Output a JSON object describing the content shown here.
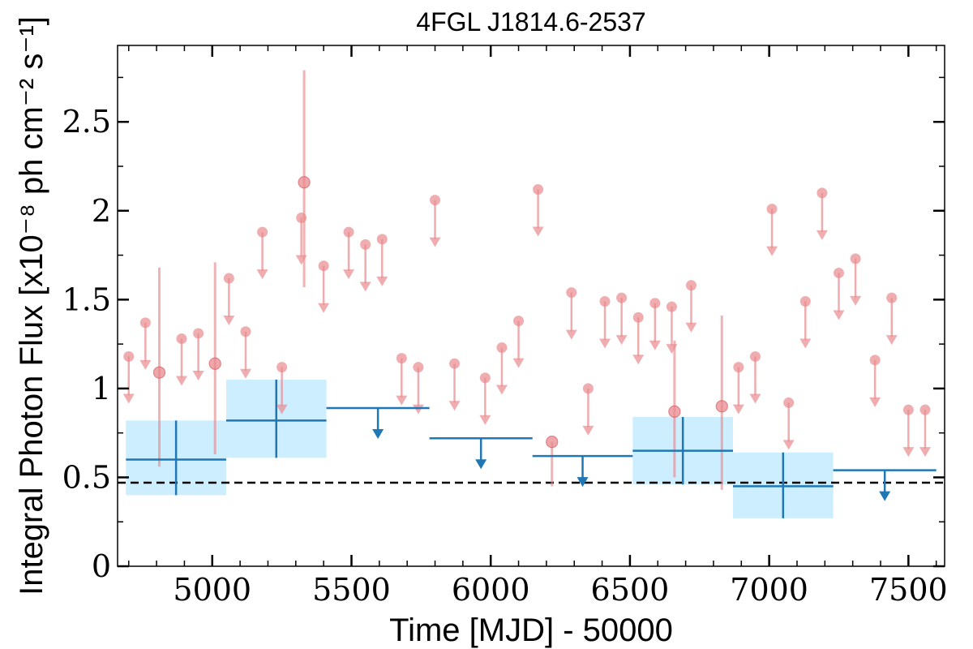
{
  "chart_data": {
    "type": "scatter",
    "title": "4FGL J1814.6-2537",
    "xlabel": "Time [MJD] - 50000",
    "ylabel": "Integral Photon Flux [x10⁻⁸ ph cm⁻² s⁻¹]",
    "xlim": [
      4660,
      7630
    ],
    "ylim": [
      0,
      2.93
    ],
    "x_ticks": [
      5000,
      5500,
      6000,
      6500,
      7000,
      7500
    ],
    "x_tick_labels": [
      "5000",
      "5500",
      "6000",
      "6500",
      "7000",
      "7500"
    ],
    "y_ticks": [
      0,
      0.5,
      1,
      1.5,
      2,
      2.5
    ],
    "y_tick_labels": [
      "0",
      "0.5",
      "1",
      "1.5",
      "2",
      "2.5"
    ],
    "grid": false,
    "reference_line": {
      "y": 0.47,
      "style": "dashed",
      "color": "#000000"
    },
    "colors": {
      "short_bins": "#e98a8e",
      "long_bins": "#1f77b4",
      "long_band": "#cdeeff"
    },
    "short_bin_upper_limits": {
      "x": [
        4700,
        4760,
        4890,
        4950,
        5060,
        5120,
        5180,
        5250,
        5320,
        5400,
        5490,
        5550,
        5610,
        5680,
        5740,
        5800,
        5870,
        5980,
        6040,
        6100,
        6170,
        6290,
        6350,
        6410,
        6470,
        6530,
        6590,
        6650,
        6720,
        6890,
        6950,
        7010,
        7070,
        7130,
        7190,
        7250,
        7310,
        7380,
        7440,
        7500,
        7560
      ],
      "y": [
        1.18,
        1.37,
        1.28,
        1.31,
        1.62,
        1.32,
        1.88,
        1.12,
        1.96,
        1.69,
        1.88,
        1.81,
        1.84,
        1.17,
        1.12,
        2.06,
        1.14,
        1.06,
        1.23,
        1.38,
        2.12,
        1.54,
        1.0,
        1.49,
        1.51,
        1.4,
        1.48,
        1.46,
        1.58,
        1.12,
        1.18,
        2.01,
        0.92,
        1.49,
        2.1,
        1.65,
        1.73,
        1.16,
        1.51,
        0.88,
        0.88
      ]
    },
    "short_bin_detections": {
      "x": [
        4810,
        5010,
        5330,
        6220,
        6660,
        6830
      ],
      "y": [
        1.09,
        1.14,
        2.16,
        0.7,
        0.87,
        0.9
      ],
      "err_low": [
        0.56,
        0.63,
        1.57,
        0.45,
        0.5,
        0.43
      ],
      "err_high": [
        1.68,
        1.71,
        2.79,
        0.7,
        1.27,
        1.41
      ]
    },
    "long_bin_detections": {
      "x_start": [
        4690,
        5050,
        6510,
        6870
      ],
      "x_end": [
        5050,
        5410,
        6870,
        7230
      ],
      "x_center": [
        4870,
        5230,
        6690,
        7050
      ],
      "y": [
        0.6,
        0.82,
        0.65,
        0.45
      ],
      "err_low": [
        0.4,
        0.61,
        0.46,
        0.27
      ],
      "err_high": [
        0.82,
        1.05,
        0.84,
        0.64
      ]
    },
    "long_bin_upper_limits": {
      "x_start": [
        5410,
        5780,
        6150,
        7230
      ],
      "x_end": [
        5780,
        6150,
        6510,
        7600
      ],
      "x_center": [
        5595,
        5965,
        6330,
        7415
      ],
      "y": [
        0.89,
        0.72,
        0.62,
        0.54
      ]
    }
  }
}
